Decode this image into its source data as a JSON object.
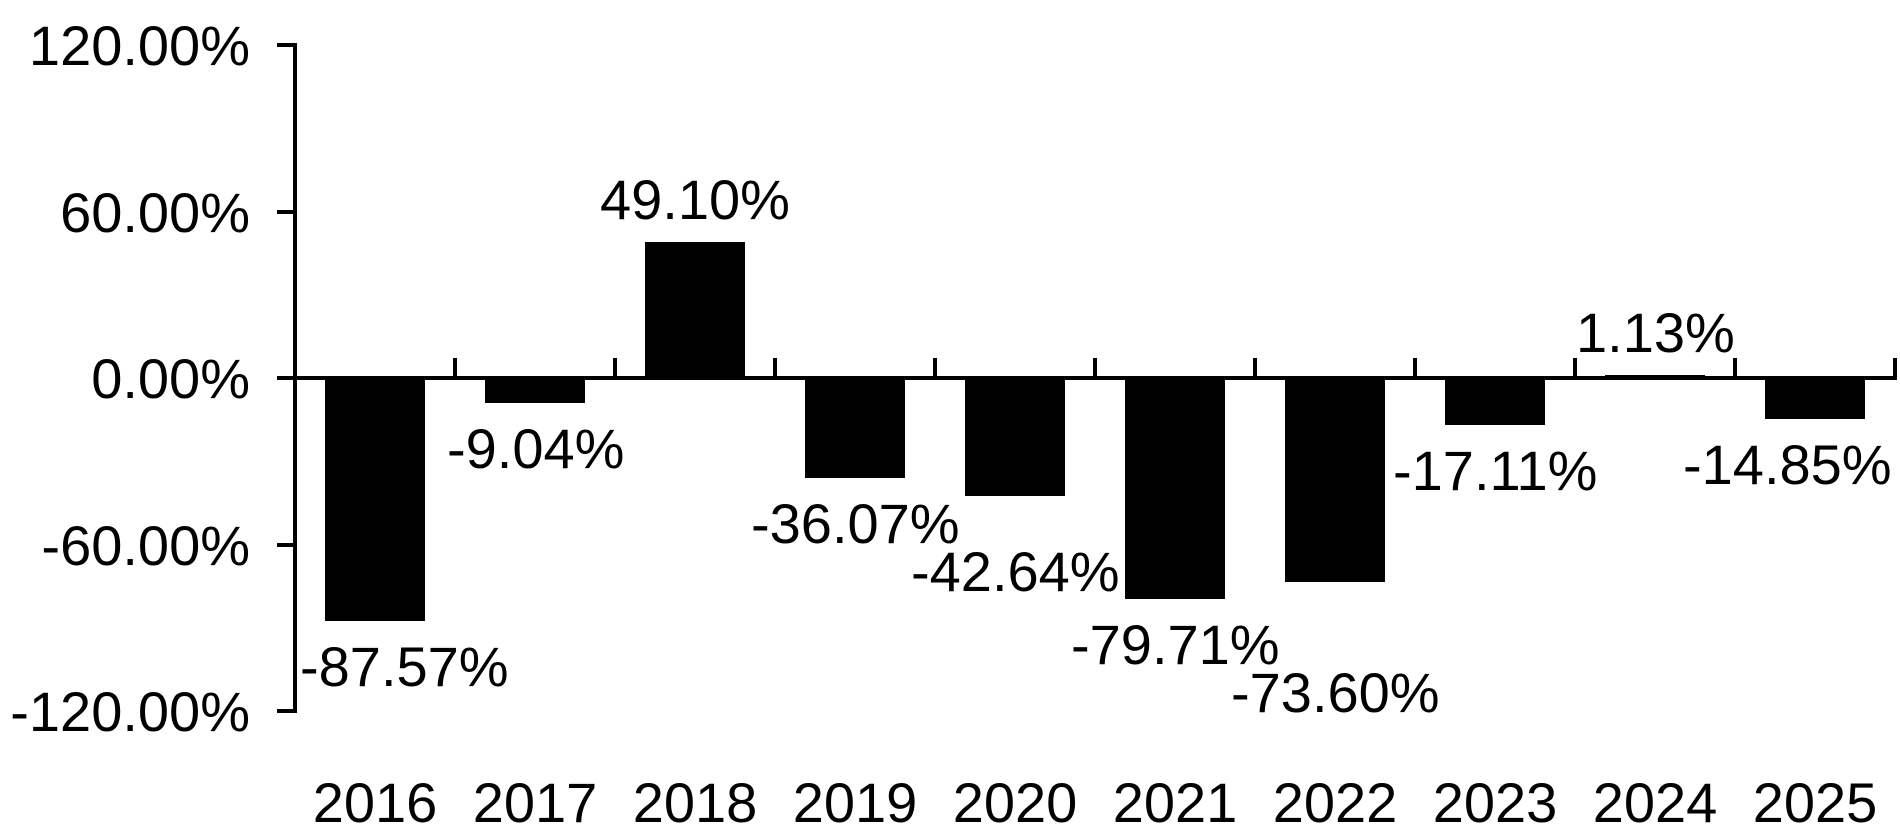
{
  "chart_data": {
    "type": "bar",
    "title": "",
    "categories": [
      "2016",
      "2017",
      "2018",
      "2019",
      "2020",
      "2021",
      "2022",
      "2023",
      "2024",
      "2025"
    ],
    "values": [
      -87.57,
      -9.04,
      49.1,
      -36.07,
      -42.64,
      -79.71,
      -73.6,
      -17.11,
      1.13,
      -14.85
    ],
    "data_labels": [
      "-87.57%",
      "-9.04%",
      "49.10%",
      "-36.07%",
      "-42.64%",
      "-79.71%",
      "-73.60%",
      "-17.11%",
      "1.13%",
      "-14.85%"
    ],
    "y_axis": {
      "tick_labels": [
        "120.00%",
        "60.00%",
        "0.00%",
        "-60.00%",
        "-120.00%"
      ],
      "tick_values": [
        120,
        60,
        0,
        -60,
        -120
      ],
      "min": -120,
      "max": 120
    },
    "xlabel": "",
    "ylabel": "",
    "legend": false,
    "grid": false,
    "bar_color": "#000000",
    "axis_color": "#000000",
    "text_color": "#000000",
    "background_color": "#ffffff"
  }
}
